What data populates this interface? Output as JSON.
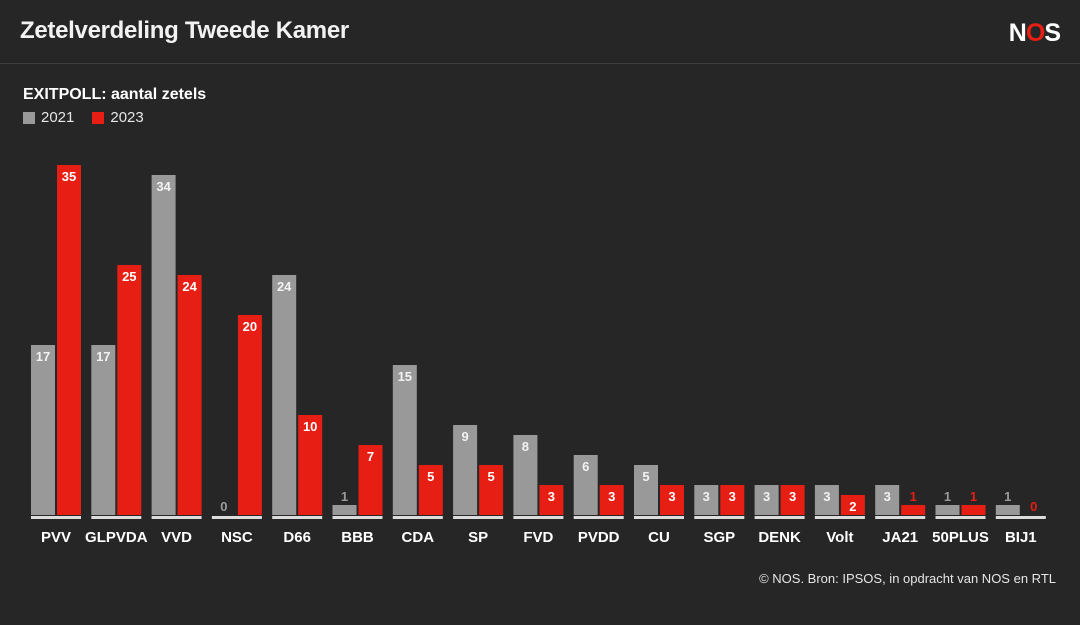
{
  "header": {
    "title": "Zetelverdeling Tweede Kamer",
    "logo": "NOS"
  },
  "colors": {
    "background": "#262626",
    "series_2021": "#999999",
    "series_2023": "#e61e14",
    "logo_accent": "#e61e14"
  },
  "chart_data": {
    "type": "bar",
    "title": "EXITPOLL: aantal zetels",
    "categories": [
      "PVV",
      "GLPVDA",
      "VVD",
      "NSC",
      "D66",
      "BBB",
      "CDA",
      "SP",
      "FVD",
      "PVDD",
      "CU",
      "SGP",
      "DENK",
      "Volt",
      "JA21",
      "50PLUS",
      "BIJ1"
    ],
    "series": [
      {
        "name": "2021",
        "values": [
          17,
          17,
          34,
          0,
          24,
          1,
          15,
          9,
          8,
          6,
          5,
          3,
          3,
          3,
          3,
          1,
          1
        ]
      },
      {
        "name": "2023",
        "values": [
          35,
          25,
          24,
          20,
          10,
          7,
          5,
          5,
          3,
          3,
          3,
          3,
          3,
          2,
          1,
          1,
          0
        ]
      }
    ],
    "ylim": [
      0,
      35
    ],
    "grid": false,
    "legend_position": "top-left"
  },
  "footer": {
    "source": "© NOS. Bron: IPSOS, in opdracht van NOS en RTL"
  }
}
